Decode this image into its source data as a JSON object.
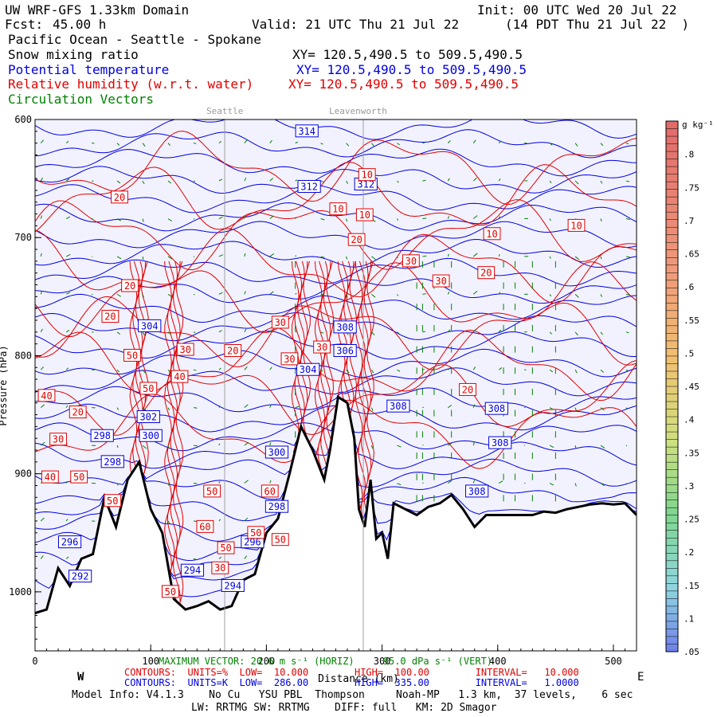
{
  "header": {
    "title": "UW WRF-GFS 1.33km Domain",
    "init": "Init: 00 UTC Wed 20 Jul 22",
    "fcst_label": "Fcst:",
    "fcst_value": "45.00 h",
    "valid": "Valid: 21 UTC Thu 21 Jul 22",
    "local": "(14 PDT Thu 21 Jul 22  )",
    "region": "Pacific Ocean - Seattle - Spokane",
    "field1": "Snow mixing ratio",
    "field1_xy": "XY= 120.5,490.5 to 509.5,490.5",
    "field2": "Potential temperature",
    "field2_xy": "XY= 120.5,490.5 to 509.5,490.5",
    "field3": "Relative humidity (w.r.t. water)",
    "field3_xy": "XY= 120.5,490.5 to 509.5,490.5",
    "field4": "Circulation Vectors"
  },
  "cities": [
    "Seattle",
    "Leavenworth"
  ],
  "footer": {
    "vector": "MAXIMUM VECTOR: 20.6 m s⁻¹ (HORIZ)     95.0 dPa s⁻¹ (VERT)",
    "red_contours": "CONTOURS:  UNITS=%  LOW=  10.000        HIGH=  100.00        INTERVAL=   10.000",
    "blue_contours": "CONTOURS:  UNITS=K  LOW=  286.00        HIGH=  335.00        INTERVAL=   1.0000",
    "model": "Model Info: V4.1.3    No Cu   YSU PBL  Thompson     Noah-MP   1.3 km,  37 levels,    6 sec",
    "physics": "LW: RRTMG SW: RRTMG    DIFF: full   KM: 2D Smagor",
    "west": "W",
    "east": "E"
  },
  "colors": {
    "theta": "#0000e0",
    "rh": "#e00000",
    "vectors": "#008000",
    "background": "#f2f2ff",
    "terrain": "#000000"
  },
  "chart_data": {
    "type": "line",
    "xlabel": "Distance (km)",
    "ylabel": "Pressure (hPa)",
    "xlim": [
      0,
      520
    ],
    "ylim": [
      1050,
      600
    ],
    "x_ticks": [
      "0",
      "100",
      "200",
      "300",
      "400",
      "500"
    ],
    "y_ticks": [
      "600",
      "700",
      "800",
      "900",
      "1000"
    ],
    "city_markers": [
      {
        "name": "Seattle",
        "x": 163
      },
      {
        "name": "Leavenworth",
        "x": 283
      }
    ],
    "terrain": {
      "name": "terrain",
      "x": [
        0,
        10,
        20,
        30,
        40,
        50,
        60,
        70,
        80,
        90,
        100,
        110,
        120,
        130,
        140,
        150,
        160,
        170,
        180,
        190,
        200,
        210,
        220,
        230,
        240,
        250,
        255,
        262,
        270,
        276,
        280,
        285,
        290,
        295,
        300,
        305,
        310,
        320,
        330,
        340,
        350,
        360,
        370,
        380,
        390,
        400,
        410,
        420,
        430,
        440,
        450,
        460,
        470,
        480,
        490,
        500,
        510,
        520
      ],
      "p": [
        1018,
        1015,
        980,
        995,
        972,
        968,
        920,
        945,
        905,
        890,
        930,
        950,
        1006,
        1015,
        1012,
        1008,
        1015,
        1012,
        990,
        985,
        950,
        938,
        900,
        860,
        880,
        905,
        880,
        835,
        840,
        870,
        930,
        945,
        905,
        955,
        950,
        972,
        925,
        930,
        935,
        928,
        925,
        918,
        930,
        945,
        935,
        935,
        935,
        935,
        935,
        932,
        933,
        930,
        928,
        926,
        925,
        926,
        925,
        935
      ]
    },
    "series": [
      {
        "name": "Potential temperature (K)",
        "type": "contour",
        "labels": [
          {
            "x": 235,
            "p": 610,
            "v": "314"
          },
          {
            "x": 237,
            "p": 657,
            "v": "312"
          },
          {
            "x": 286,
            "p": 655,
            "v": "312"
          },
          {
            "x": 99,
            "p": 775,
            "v": "304"
          },
          {
            "x": 268,
            "p": 776,
            "v": "308"
          },
          {
            "x": 268,
            "p": 796,
            "v": "306"
          },
          {
            "x": 236,
            "p": 812,
            "v": "304"
          },
          {
            "x": 98,
            "p": 852,
            "v": "302"
          },
          {
            "x": 100,
            "p": 868,
            "v": "300"
          },
          {
            "x": 58,
            "p": 868,
            "v": "298"
          },
          {
            "x": 67,
            "p": 890,
            "v": "298"
          },
          {
            "x": 314,
            "p": 843,
            "v": "308"
          },
          {
            "x": 399,
            "p": 845,
            "v": "308"
          },
          {
            "x": 402,
            "p": 874,
            "v": "308"
          },
          {
            "x": 382,
            "p": 915,
            "v": "308"
          },
          {
            "x": 209,
            "p": 882,
            "v": "300"
          },
          {
            "x": 209,
            "p": 928,
            "v": "298"
          },
          {
            "x": 188,
            "p": 958,
            "v": "296"
          },
          {
            "x": 30,
            "p": 958,
            "v": "296"
          },
          {
            "x": 39,
            "p": 987,
            "v": "292"
          },
          {
            "x": 136,
            "p": 982,
            "v": "294"
          },
          {
            "x": 171,
            "p": 995,
            "v": "294"
          }
        ]
      },
      {
        "name": "Relative humidity (%)",
        "type": "contour",
        "labels": [
          {
            "x": 73,
            "p": 666,
            "v": "20"
          },
          {
            "x": 262,
            "p": 676,
            "v": "10"
          },
          {
            "x": 287,
            "p": 647,
            "v": "10"
          },
          {
            "x": 285,
            "p": 681,
            "v": "10"
          },
          {
            "x": 395,
            "p": 697,
            "v": "10"
          },
          {
            "x": 468,
            "p": 690,
            "v": "10"
          },
          {
            "x": 278,
            "p": 702,
            "v": "20"
          },
          {
            "x": 325,
            "p": 720,
            "v": "30"
          },
          {
            "x": 351,
            "p": 737,
            "v": "30"
          },
          {
            "x": 390,
            "p": 730,
            "v": "20"
          },
          {
            "x": 82,
            "p": 741,
            "v": "20"
          },
          {
            "x": 65,
            "p": 767,
            "v": "20"
          },
          {
            "x": 212,
            "p": 772,
            "v": "30"
          },
          {
            "x": 130,
            "p": 795,
            "v": "30"
          },
          {
            "x": 171,
            "p": 796,
            "v": "20"
          },
          {
            "x": 84,
            "p": 800,
            "v": "50"
          },
          {
            "x": 220,
            "p": 803,
            "v": "30"
          },
          {
            "x": 248,
            "p": 793,
            "v": "30"
          },
          {
            "x": 125,
            "p": 818,
            "v": "40"
          },
          {
            "x": 98,
            "p": 828,
            "v": "50"
          },
          {
            "x": 10,
            "p": 834,
            "v": "40"
          },
          {
            "x": 37,
            "p": 848,
            "v": "20"
          },
          {
            "x": 374,
            "p": 829,
            "v": "20"
          },
          {
            "x": 20,
            "p": 871,
            "v": "30"
          },
          {
            "x": 13,
            "p": 903,
            "v": "40"
          },
          {
            "x": 38,
            "p": 903,
            "v": "50"
          },
          {
            "x": 67,
            "p": 923,
            "v": "50"
          },
          {
            "x": 153,
            "p": 915,
            "v": "50"
          },
          {
            "x": 203,
            "p": 915,
            "v": "60"
          },
          {
            "x": 147,
            "p": 945,
            "v": "60"
          },
          {
            "x": 191,
            "p": 950,
            "v": "50"
          },
          {
            "x": 212,
            "p": 956,
            "v": "50"
          },
          {
            "x": 165,
            "p": 963,
            "v": "50"
          },
          {
            "x": 160,
            "p": 980,
            "v": "30"
          },
          {
            "x": 117,
            "p": 1000,
            "v": "50"
          }
        ]
      },
      {
        "name": "Snow mixing ratio (g kg⁻¹)",
        "type": "filled",
        "values": []
      }
    ],
    "colorbar": {
      "title": "g kg⁻¹",
      "min": 0.05,
      "max": 0.85,
      "ticks": [
        ".05",
        ".1",
        ".15",
        ".2",
        ".25",
        ".3",
        ".35",
        ".4",
        ".45",
        ".5",
        ".55",
        ".6",
        ".65",
        ".7",
        ".75",
        ".8"
      ]
    }
  }
}
